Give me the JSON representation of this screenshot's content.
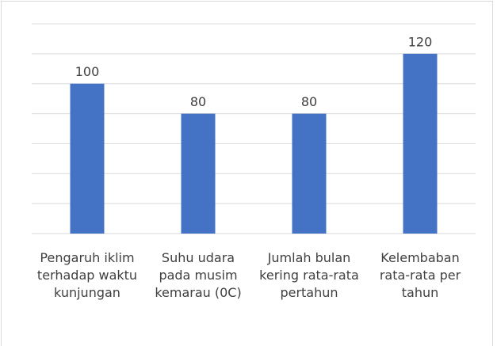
{
  "chart_data": {
    "type": "bar",
    "categories": [
      "Pengaruh iklim terhadap waktu kunjungan",
      "Suhu udara pada musim kemarau (0C)",
      "Jumlah bulan kering rata-rata pertahun",
      "Kelembaban rata-rata per tahun"
    ],
    "values": [
      100,
      80,
      80,
      120
    ],
    "color": "#4472c4",
    "ylim": [
      0,
      140
    ],
    "yticks": [
      0,
      20,
      40,
      60,
      80,
      100,
      120,
      140
    ],
    "grid": true,
    "ytick_labels": false,
    "data_labels": true
  }
}
